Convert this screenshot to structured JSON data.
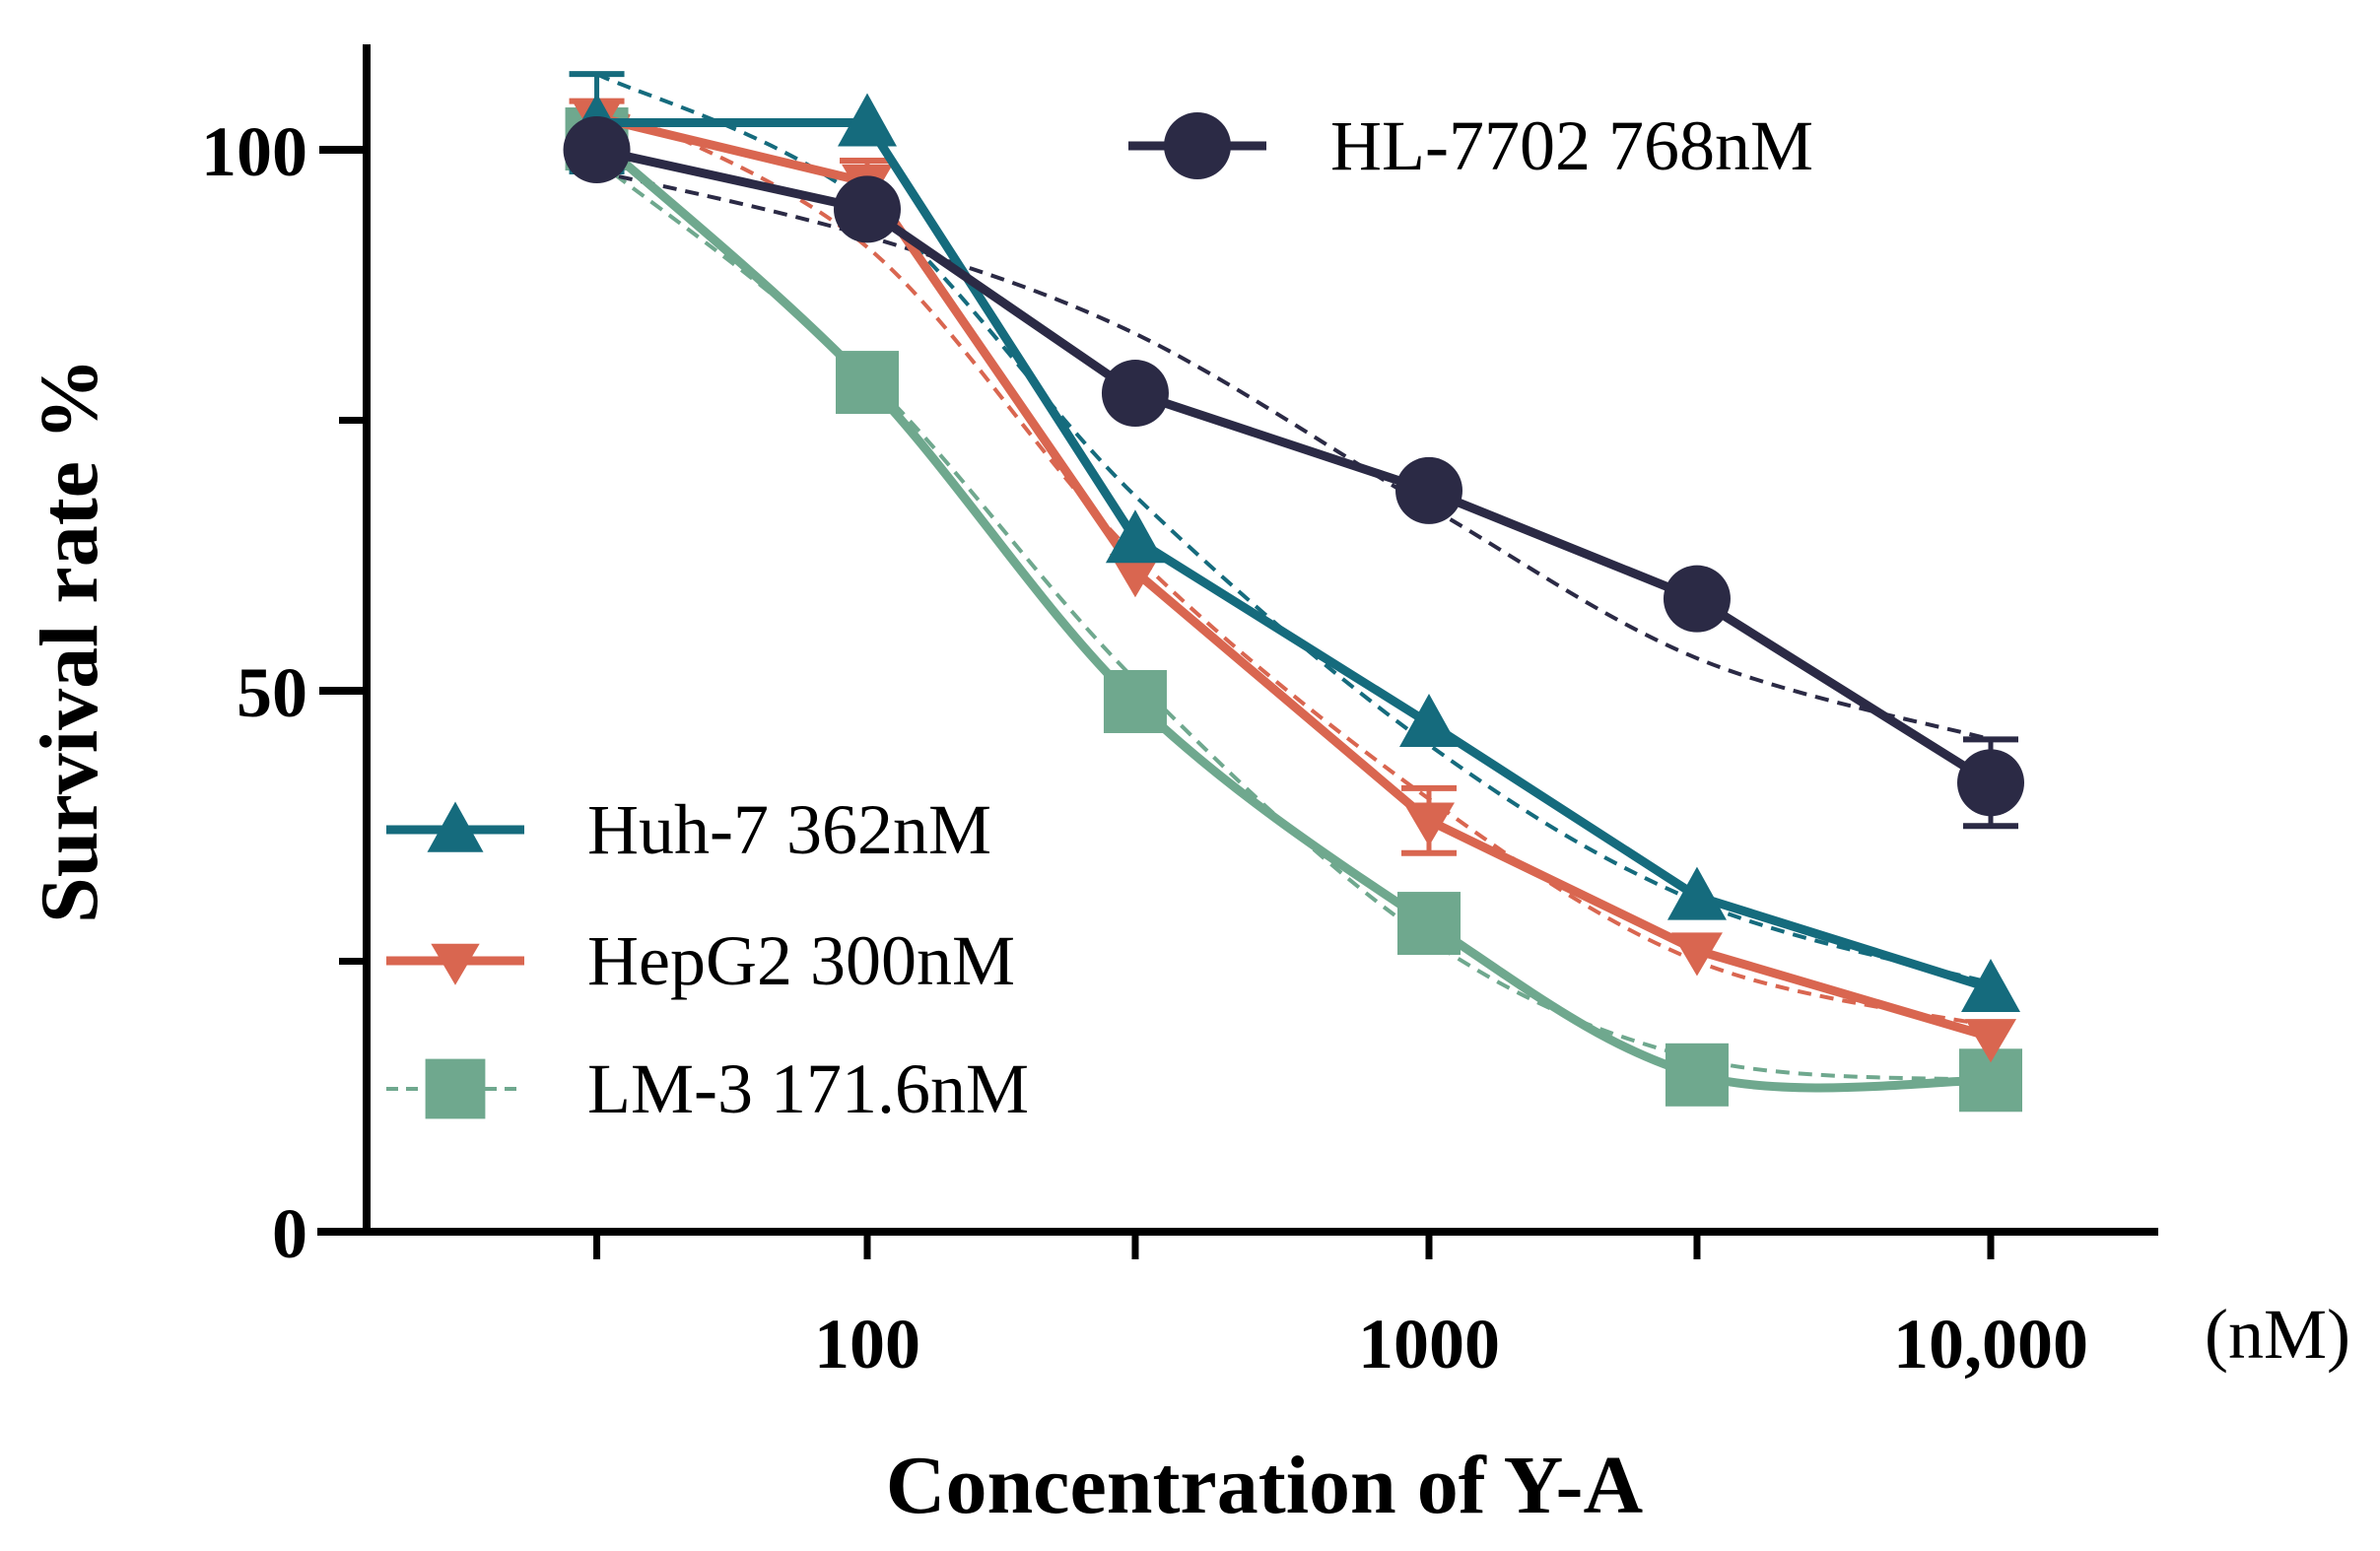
{
  "chart_data": {
    "type": "line",
    "title": "",
    "xlabel": "Concentration of Y-A",
    "ylabel": "Survival rate %",
    "x_unit_label": "(nM)",
    "x_scale": "log",
    "xlim": [
      12,
      20000
    ],
    "ylim": [
      0,
      110
    ],
    "y_ticks": [
      0,
      50,
      100
    ],
    "y_tick_labels": [
      "0",
      "50",
      "100"
    ],
    "y_minor_ticks": [
      25,
      75
    ],
    "x_major_ticks": [
      100,
      1000,
      10000
    ],
    "x_tick_labels": [
      "100",
      "1000",
      "10,000"
    ],
    "x_minor_ticks": [
      33,
      300,
      3000
    ],
    "x": [
      33,
      100,
      300,
      1000,
      3000,
      10000
    ],
    "series": [
      {
        "name": "HL-7702 768nM",
        "color": "#2b2a45",
        "marker": "circle",
        "values": [
          100,
          94.5,
          77.5,
          68.5,
          58.5,
          41.5
        ],
        "errors": [
          1,
          1.5,
          1,
          1,
          1,
          4
        ],
        "fit": [
          98,
          92,
          83,
          67,
          53,
          45.5
        ]
      },
      {
        "name": "Huh-7 362nM",
        "color": "#156b7d",
        "marker": "triangle-up",
        "values": [
          102.5,
          102.5,
          64,
          47,
          31,
          22.5
        ],
        "errors": [
          4.5,
          1,
          1,
          1,
          1,
          1
        ],
        "fit": [
          107,
          95,
          68,
          45,
          30.5,
          23
        ]
      },
      {
        "name": "HepG2 300nM",
        "color": "#d96650",
        "marker": "triangle-down",
        "values": [
          103,
          97,
          61,
          38,
          26,
          18
        ],
        "errors": [
          1.5,
          2,
          1,
          3,
          1,
          1
        ],
        "fit": [
          104.5,
          91,
          62.5,
          40,
          25,
          19
        ]
      },
      {
        "name": "LM-3 171.6nM",
        "color": "#6fa88e",
        "marker": "square",
        "values": [
          101,
          78.5,
          49,
          28.5,
          14.5,
          14
        ],
        "errors": [
          1,
          1,
          1,
          1,
          1,
          1
        ],
        "fit": [
          99,
          79,
          51,
          27,
          16,
          14
        ]
      }
    ],
    "legend": [
      {
        "label": "HL-7702 768nM",
        "position": "top-right"
      },
      {
        "label": "Huh-7 362nM",
        "position": "bottom-left"
      },
      {
        "label": "HepG2 300nM",
        "position": "bottom-left"
      },
      {
        "label": "LM-3 171.6nM",
        "position": "bottom-left"
      }
    ]
  }
}
